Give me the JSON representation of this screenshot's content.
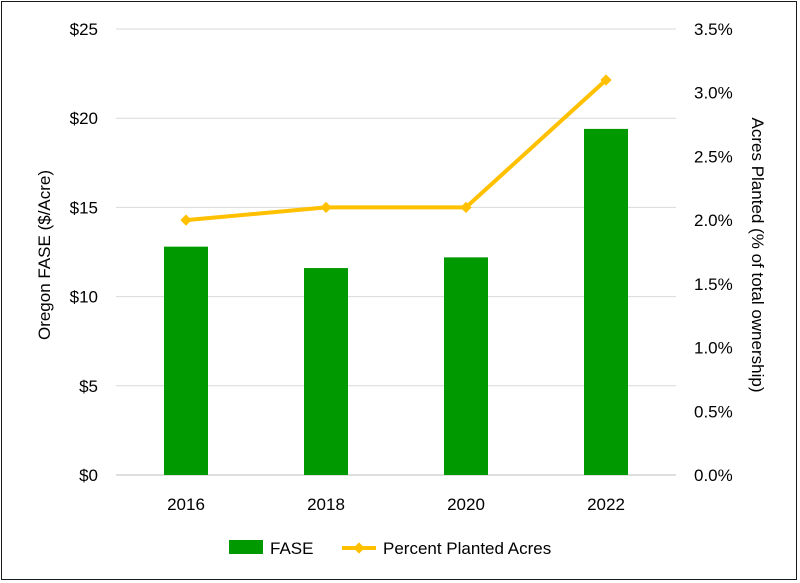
{
  "chart_data": {
    "type": "bar",
    "categories": [
      "2016",
      "2018",
      "2020",
      "2022"
    ],
    "series": [
      {
        "name": "FASE",
        "type": "bar",
        "axis": "left",
        "color": "#009900",
        "values": [
          12.8,
          11.6,
          12.2,
          19.4
        ]
      },
      {
        "name": "Percent Planted Acres",
        "type": "line",
        "axis": "right",
        "color": "#FFC000",
        "values": [
          2.0,
          2.1,
          2.1,
          3.1
        ]
      }
    ],
    "ylabel": "Oregon FASE ($/Acre)",
    "y2label": "Acres Planted (% of total ownership)",
    "ylim": [
      0,
      25
    ],
    "y2lim": [
      0,
      3.5
    ],
    "yticks": [
      {
        "value": 0,
        "label": "$0"
      },
      {
        "value": 5,
        "label": "$5"
      },
      {
        "value": 10,
        "label": "$10"
      },
      {
        "value": 15,
        "label": "$15"
      },
      {
        "value": 20,
        "label": "$20"
      },
      {
        "value": 25,
        "label": "$25"
      }
    ],
    "y2ticks": [
      {
        "value": 0,
        "label": "0.0%"
      },
      {
        "value": 0.5,
        "label": "0.5%"
      },
      {
        "value": 1,
        "label": "1.0%"
      },
      {
        "value": 1.5,
        "label": "1.5%"
      },
      {
        "value": 2,
        "label": "2.0%"
      },
      {
        "value": 2.5,
        "label": "2.5%"
      },
      {
        "value": 3,
        "label": "3.0%"
      },
      {
        "value": 3.5,
        "label": "3.5%"
      }
    ],
    "grid": true,
    "gridColor": "#d9d9d9",
    "legend_position": "bottom"
  }
}
